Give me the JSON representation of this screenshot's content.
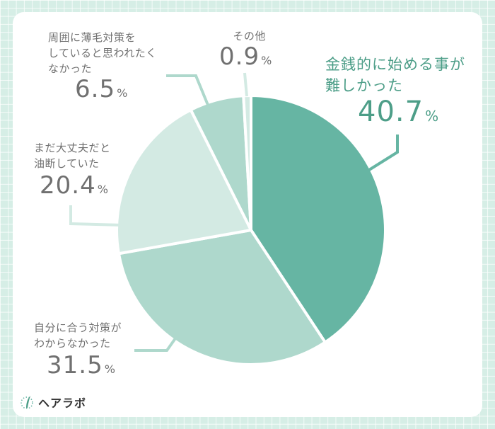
{
  "chart_data": {
    "type": "pie",
    "title": "",
    "start_angle_deg": 0,
    "direction": "clockwise",
    "center": [
      355,
      325
    ],
    "radius": 190,
    "slices": [
      {
        "label": "金銭的に始める事が難しかった",
        "value": 40.7,
        "color": "#66b5a3"
      },
      {
        "label": "自分に合う対策がわからなかった",
        "value": 31.5,
        "color": "#aed8cc"
      },
      {
        "label": "まだ大丈夫だと油断していた",
        "value": 20.4,
        "color": "#d3eae3"
      },
      {
        "label": "周囲に薄毛対策をしていると思われたくなかった",
        "value": 6.5,
        "color": "#aed8cc"
      },
      {
        "label": "その他",
        "value": 0.9,
        "color": "#d3eae3"
      }
    ],
    "unit": "%"
  },
  "labels": {
    "money": {
      "line1": "金銭的に始める事が",
      "line2": "難しかった",
      "value": "40.7",
      "unit": "%"
    },
    "fit": {
      "line1": "自分に合う対策が",
      "line2": "わからなかった",
      "value": "31.5",
      "unit": "%"
    },
    "careless": {
      "line1": "まだ大丈夫だと",
      "line2": "油断していた",
      "value": "20.4",
      "unit": "%"
    },
    "others_see": {
      "line1": "周囲に薄毛対策を",
      "line2": "していると思われたく",
      "line3": "なかった",
      "value": "6.5",
      "unit": "%"
    },
    "other": {
      "line1": "その他",
      "value": "0.9",
      "unit": "%"
    }
  },
  "brand": {
    "name": "ヘアラボ"
  },
  "colors": {
    "accent": "#4d9e88",
    "text": "#707070",
    "background": "#d6eee6"
  }
}
